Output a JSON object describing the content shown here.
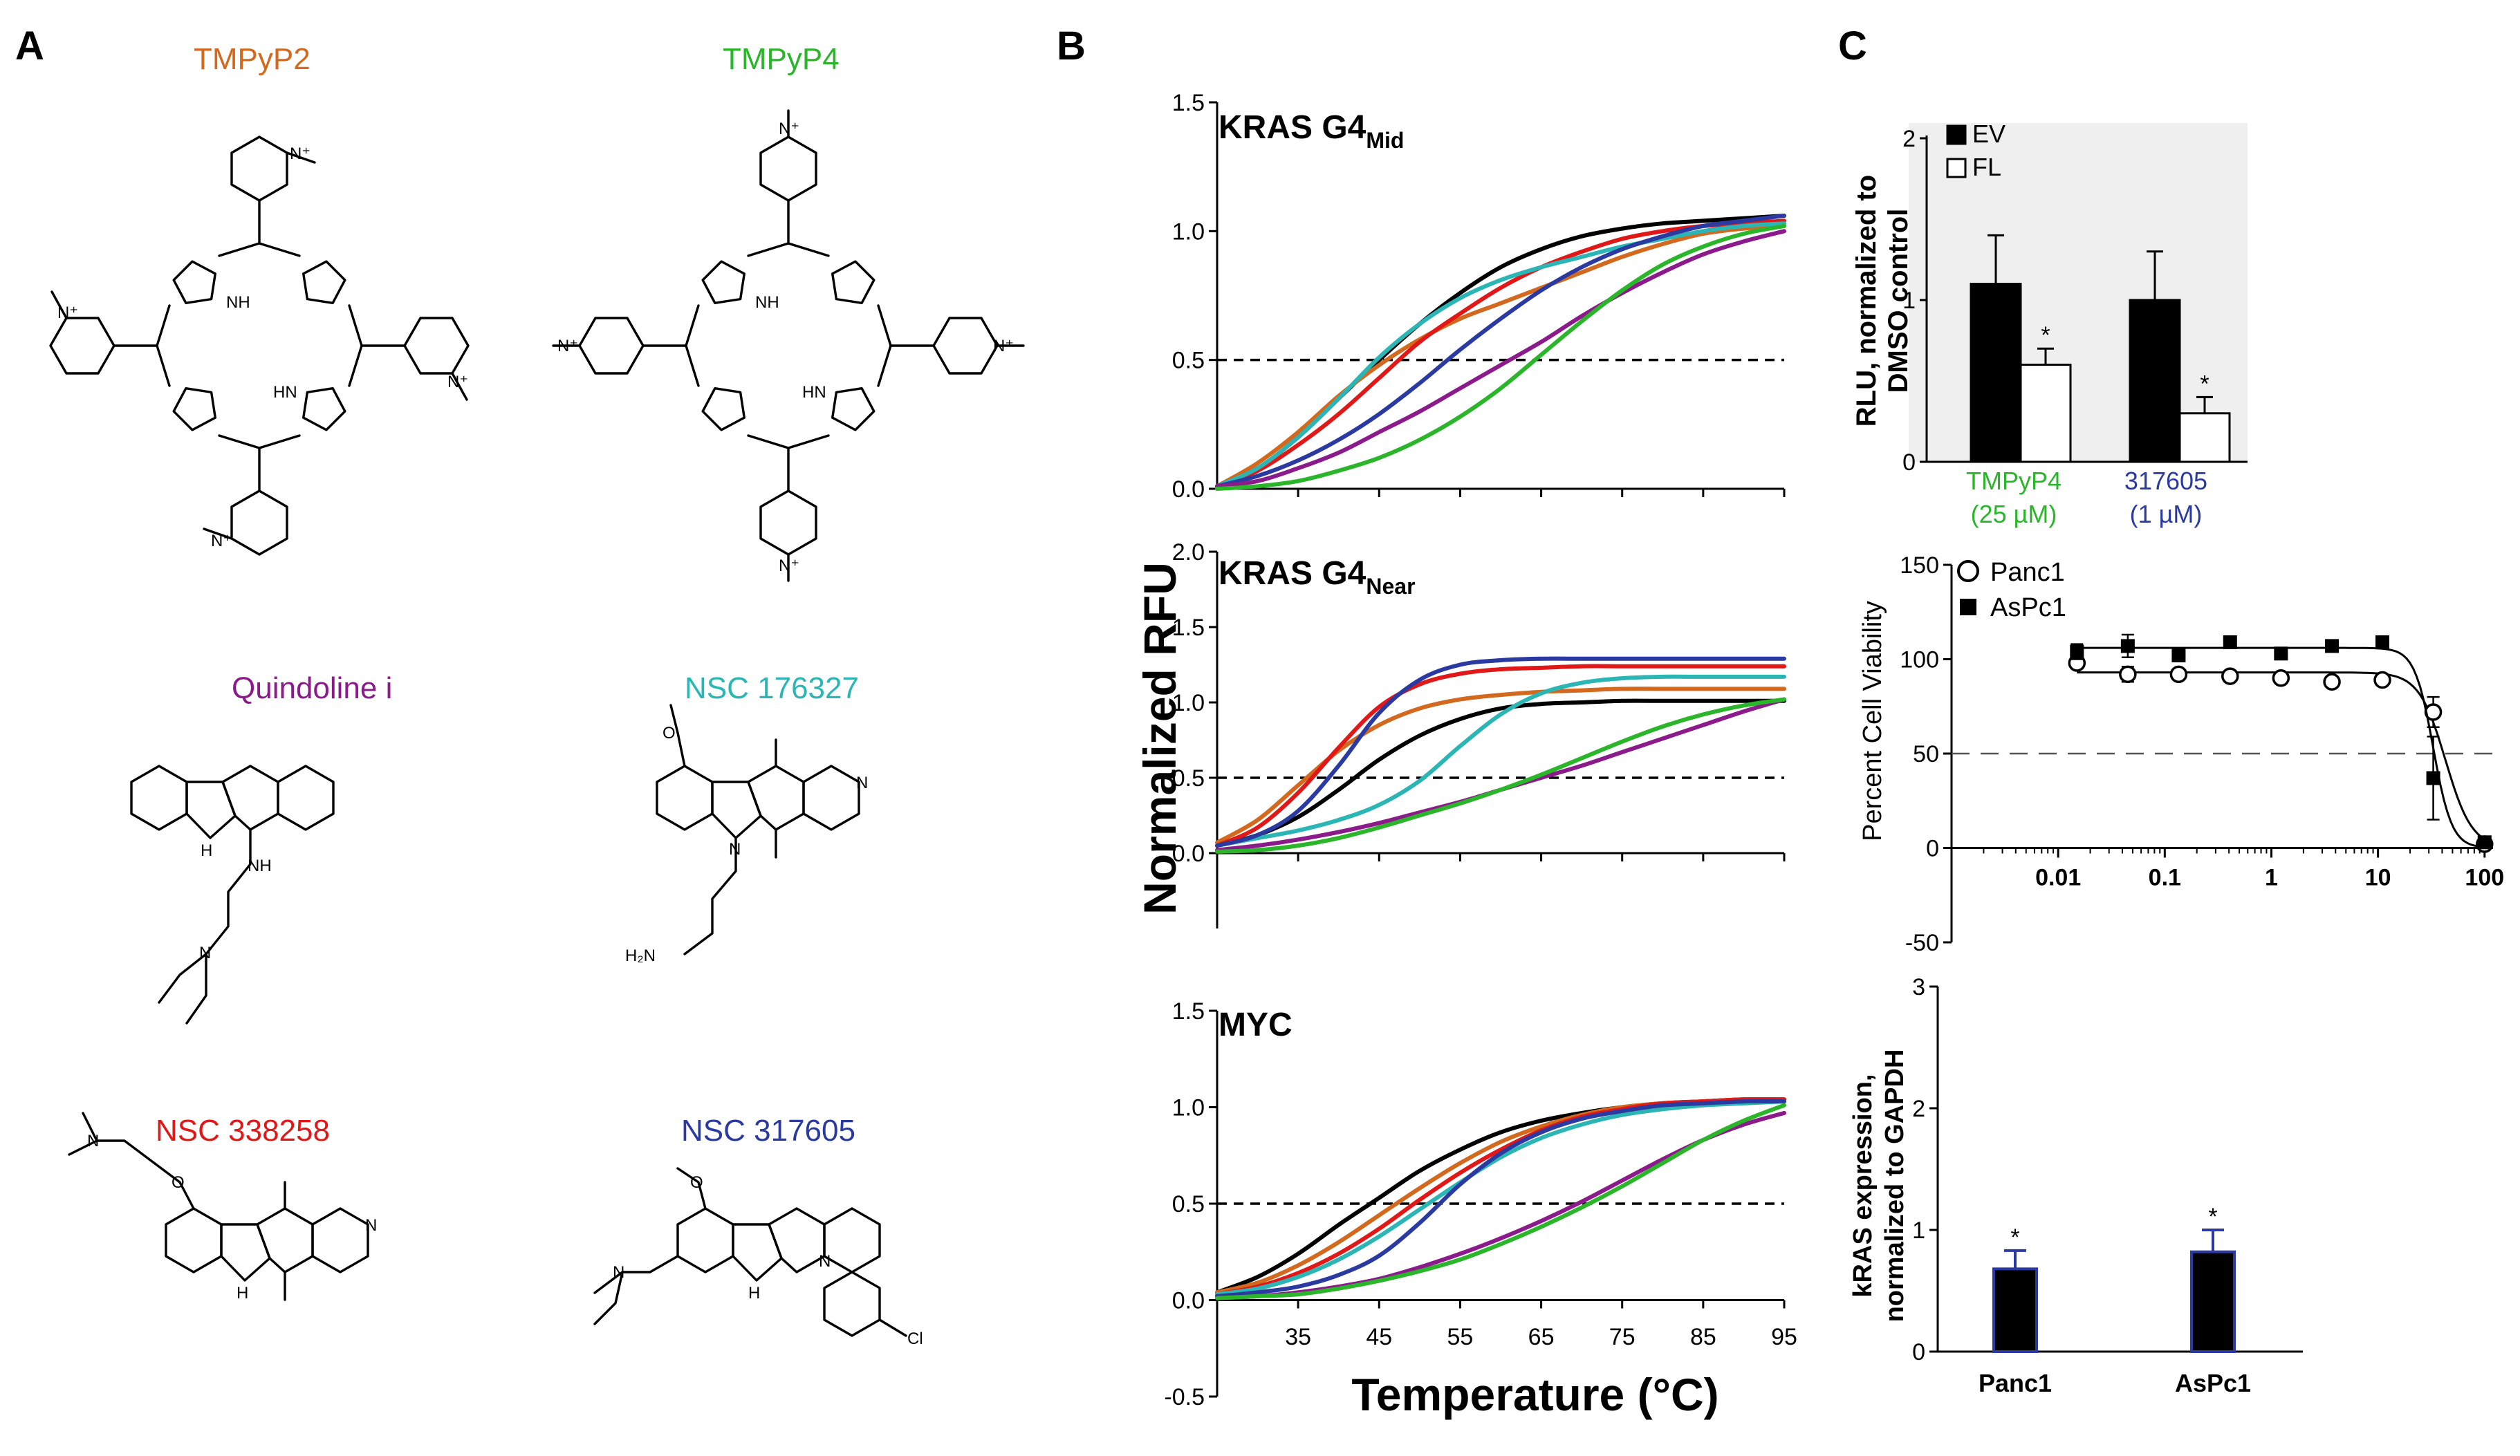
{
  "panel_labels": {
    "a": "A",
    "b": "B",
    "c": "C"
  },
  "panel_a": {
    "compounds": [
      {
        "name": "TMPyP2",
        "color": "#d2691e"
      },
      {
        "name": "TMPyP4",
        "color": "#2ab52a"
      },
      {
        "name": "Quindoline i",
        "color": "#8b1a8b"
      },
      {
        "name": "NSC 176327",
        "color": "#2bb5b5"
      },
      {
        "name": "NSC 338258",
        "color": "#e01818"
      },
      {
        "name": "NSC 317605",
        "color": "#2b3aa0"
      }
    ],
    "atoms": {
      "n": "N",
      "n_plus": "N⁺",
      "nh": "NH",
      "hn": "HN",
      "h": "H",
      "o": "O",
      "cl": "Cl",
      "h2n": "H₂N"
    }
  },
  "panel_b": {
    "ylabel": "Normalized RFU",
    "xlabel": "Temperature (°C)",
    "series_colors": [
      "#000000",
      "#d2691e",
      "#e01818",
      "#2bb5b5",
      "#2b3aa0",
      "#8b1a8b",
      "#2ab52a"
    ],
    "dashed_level": 0.5,
    "x_ticks": [
      "35",
      "45",
      "55",
      "65",
      "75",
      "85",
      "95"
    ],
    "subplots": [
      {
        "title_main": "KRAS G4",
        "title_sub": "Mid",
        "y_ticks": [
          "0.0",
          "0.5",
          "1.0",
          "1.5"
        ],
        "ylim": [
          0,
          1.5
        ]
      },
      {
        "title_main": "KRAS G4",
        "title_sub": "Near",
        "y_ticks": [
          "0.0",
          "0.5",
          "1.0",
          "1.5",
          "2.0"
        ],
        "ylim": [
          -0.5,
          2.0
        ]
      },
      {
        "title_main": "MYC",
        "title_sub": "",
        "y_ticks": [
          "-0.5",
          "0.0",
          "0.5",
          "1.0",
          "1.5"
        ],
        "ylim": [
          -0.5,
          1.5
        ]
      }
    ]
  },
  "panel_c": {
    "top": {
      "ylabel_line1": "RLU, normalized to",
      "ylabel_line2": "DMSO control",
      "y_ticks": [
        "0",
        "1",
        "2"
      ],
      "legend": [
        {
          "label": "EV",
          "fill": "#000000"
        },
        {
          "label": "FL",
          "fill": "#ffffff"
        }
      ],
      "groups": [
        {
          "line1": "TMPyP4",
          "line2": "(25 µM)",
          "color": "#2ab52a"
        },
        {
          "line1": "317605",
          "line2": "(1 µM)",
          "color": "#2b3aa0"
        }
      ],
      "star": "*"
    },
    "middle": {
      "ylabel": "Percent Cell Viability",
      "y_ticks": [
        "-50",
        "0",
        "50",
        "100",
        "150"
      ],
      "x_ticks": [
        "0.01",
        "0.1",
        "1",
        "10",
        "100"
      ],
      "legend": [
        {
          "label": "Panc1",
          "marker": "open-circle"
        },
        {
          "label": "AsPc1",
          "marker": "filled-square"
        }
      ]
    },
    "bottom": {
      "ylabel_line1": "kRAS expression,",
      "ylabel_line2": "normalized to GAPDH",
      "y_ticks": [
        "0",
        "1",
        "2",
        "3"
      ],
      "categories": [
        "Panc1",
        "AsPc1"
      ],
      "star": "*"
    }
  },
  "chart_data": [
    {
      "type": "line",
      "title": "KRAS G4Mid",
      "xlabel": "Temperature (°C)",
      "ylabel": "Normalized RFU",
      "ylim": [
        0,
        1.5
      ],
      "x": [
        25,
        30,
        35,
        40,
        45,
        50,
        55,
        60,
        65,
        70,
        75,
        80,
        85,
        90,
        95
      ],
      "series": [
        {
          "color": "#000000",
          "values": [
            0.01,
            0.08,
            0.2,
            0.35,
            0.5,
            0.64,
            0.76,
            0.86,
            0.93,
            0.98,
            1.01,
            1.03,
            1.04,
            1.05,
            1.06
          ]
        },
        {
          "color": "#d2691e",
          "values": [
            0.01,
            0.1,
            0.22,
            0.36,
            0.48,
            0.58,
            0.66,
            0.72,
            0.78,
            0.84,
            0.9,
            0.95,
            0.99,
            1.01,
            1.02
          ]
        },
        {
          "color": "#e01818",
          "values": [
            0.01,
            0.07,
            0.17,
            0.29,
            0.43,
            0.57,
            0.68,
            0.78,
            0.86,
            0.92,
            0.97,
            1.0,
            1.02,
            1.03,
            1.04
          ]
        },
        {
          "color": "#2bb5b5",
          "values": [
            0.01,
            0.08,
            0.2,
            0.35,
            0.51,
            0.64,
            0.74,
            0.81,
            0.86,
            0.9,
            0.94,
            0.97,
            1.0,
            1.02,
            1.03
          ]
        },
        {
          "color": "#2b3aa0",
          "values": [
            0.01,
            0.05,
            0.11,
            0.19,
            0.29,
            0.41,
            0.54,
            0.66,
            0.77,
            0.86,
            0.93,
            0.98,
            1.02,
            1.04,
            1.06
          ]
        },
        {
          "color": "#8b1a8b",
          "values": [
            0.01,
            0.03,
            0.08,
            0.14,
            0.22,
            0.3,
            0.39,
            0.48,
            0.57,
            0.67,
            0.76,
            0.84,
            0.91,
            0.96,
            1.0
          ]
        },
        {
          "color": "#2ab52a",
          "values": [
            0.0,
            0.01,
            0.03,
            0.07,
            0.12,
            0.19,
            0.28,
            0.39,
            0.52,
            0.65,
            0.77,
            0.87,
            0.94,
            0.99,
            1.02
          ]
        }
      ]
    },
    {
      "type": "line",
      "title": "KRAS G4Near",
      "xlabel": "Temperature (°C)",
      "ylabel": "Normalized RFU",
      "ylim": [
        -0.5,
        2.0
      ],
      "x": [
        25,
        30,
        35,
        40,
        45,
        50,
        55,
        60,
        65,
        70,
        75,
        80,
        85,
        90,
        95
      ],
      "series": [
        {
          "color": "#000000",
          "values": [
            0.05,
            0.12,
            0.24,
            0.42,
            0.62,
            0.78,
            0.89,
            0.96,
            0.99,
            1.0,
            1.01,
            1.01,
            1.01,
            1.01,
            1.01
          ]
        },
        {
          "color": "#d2691e",
          "values": [
            0.07,
            0.22,
            0.45,
            0.68,
            0.85,
            0.96,
            1.02,
            1.05,
            1.07,
            1.08,
            1.09,
            1.09,
            1.09,
            1.09,
            1.09
          ]
        },
        {
          "color": "#e01818",
          "values": [
            0.05,
            0.17,
            0.4,
            0.7,
            0.97,
            1.12,
            1.19,
            1.22,
            1.23,
            1.24,
            1.24,
            1.24,
            1.24,
            1.24,
            1.24
          ]
        },
        {
          "color": "#2bb5b5",
          "values": [
            0.05,
            0.1,
            0.15,
            0.22,
            0.32,
            0.48,
            0.71,
            0.92,
            1.06,
            1.13,
            1.16,
            1.17,
            1.17,
            1.17,
            1.17
          ]
        },
        {
          "color": "#2b3aa0",
          "values": [
            0.05,
            0.12,
            0.28,
            0.58,
            0.93,
            1.15,
            1.25,
            1.28,
            1.29,
            1.29,
            1.29,
            1.29,
            1.29,
            1.29,
            1.29
          ]
        },
        {
          "color": "#8b1a8b",
          "values": [
            0.02,
            0.05,
            0.09,
            0.14,
            0.2,
            0.27,
            0.34,
            0.42,
            0.5,
            0.58,
            0.67,
            0.76,
            0.85,
            0.94,
            1.02
          ]
        },
        {
          "color": "#2ab52a",
          "values": [
            0.01,
            0.02,
            0.05,
            0.1,
            0.17,
            0.25,
            0.33,
            0.42,
            0.52,
            0.63,
            0.74,
            0.84,
            0.92,
            0.98,
            1.02
          ]
        }
      ]
    },
    {
      "type": "line",
      "title": "MYC",
      "xlabel": "Temperature (°C)",
      "ylabel": "Normalized RFU",
      "ylim": [
        -0.5,
        1.5
      ],
      "x": [
        25,
        30,
        35,
        40,
        45,
        50,
        55,
        60,
        65,
        70,
        75,
        80,
        85,
        90,
        95
      ],
      "series": [
        {
          "color": "#000000",
          "values": [
            0.04,
            0.12,
            0.24,
            0.39,
            0.53,
            0.67,
            0.78,
            0.87,
            0.93,
            0.97,
            1.0,
            1.02,
            1.03,
            1.04,
            1.04
          ]
        },
        {
          "color": "#d2691e",
          "values": [
            0.04,
            0.09,
            0.18,
            0.3,
            0.44,
            0.58,
            0.71,
            0.82,
            0.9,
            0.96,
            1.0,
            1.02,
            1.03,
            1.04,
            1.04
          ]
        },
        {
          "color": "#e01818",
          "values": [
            0.03,
            0.07,
            0.14,
            0.24,
            0.37,
            0.52,
            0.66,
            0.78,
            0.88,
            0.95,
            0.99,
            1.02,
            1.03,
            1.04,
            1.04
          ]
        },
        {
          "color": "#2bb5b5",
          "values": [
            0.03,
            0.06,
            0.12,
            0.21,
            0.33,
            0.47,
            0.61,
            0.74,
            0.84,
            0.91,
            0.96,
            0.99,
            1.01,
            1.02,
            1.03
          ]
        },
        {
          "color": "#2b3aa0",
          "values": [
            0.02,
            0.04,
            0.07,
            0.13,
            0.23,
            0.4,
            0.6,
            0.76,
            0.87,
            0.94,
            0.98,
            1.01,
            1.02,
            1.03,
            1.03
          ]
        },
        {
          "color": "#8b1a8b",
          "values": [
            0.01,
            0.02,
            0.04,
            0.07,
            0.11,
            0.17,
            0.24,
            0.32,
            0.41,
            0.51,
            0.62,
            0.73,
            0.83,
            0.91,
            0.97
          ]
        },
        {
          "color": "#2ab52a",
          "values": [
            0.01,
            0.02,
            0.03,
            0.06,
            0.1,
            0.15,
            0.21,
            0.29,
            0.38,
            0.48,
            0.59,
            0.71,
            0.83,
            0.93,
            1.01
          ]
        }
      ]
    },
    {
      "type": "bar",
      "title": "",
      "ylabel": "RLU, normalized to DMSO control",
      "ylim": [
        0,
        2
      ],
      "categories": [
        "TMPyP4 (25 µM)",
        "317605 (1 µM)"
      ],
      "series": [
        {
          "name": "EV",
          "values": [
            1.1,
            1.0
          ],
          "errors": [
            0.3,
            0.3
          ],
          "color": "#000000"
        },
        {
          "name": "FL",
          "values": [
            0.6,
            0.3
          ],
          "errors": [
            0.1,
            0.1
          ],
          "color": "#ffffff"
        }
      ],
      "significance": [
        "*",
        "*"
      ]
    },
    {
      "type": "scatter",
      "title": "",
      "ylabel": "Percent Cell Viability",
      "x_scale": "log",
      "ylim": [
        -50,
        150
      ],
      "xlim": [
        0.001,
        120
      ],
      "series": [
        {
          "name": "Panc1",
          "marker": "open-circle",
          "x": [
            0.015,
            0.045,
            0.135,
            0.41,
            1.23,
            3.7,
            11,
            33,
            100
          ],
          "y": [
            98,
            92,
            92,
            91,
            90,
            88,
            89,
            72,
            2
          ],
          "errors": [
            3,
            4,
            2,
            2,
            2,
            2,
            2,
            8,
            2
          ],
          "fit": {
            "top": 93,
            "bottom": 0,
            "ic50": 43,
            "hill": 3.5
          }
        },
        {
          "name": "AsPc1",
          "marker": "filled-square",
          "x": [
            0.015,
            0.045,
            0.135,
            0.41,
            1.23,
            3.7,
            11,
            33,
            100
          ],
          "y": [
            104,
            107,
            102,
            109,
            103,
            107,
            109,
            37,
            3
          ],
          "errors": [
            4,
            6,
            2,
            3,
            2,
            2,
            2,
            22,
            2
          ],
          "fit": {
            "top": 106,
            "bottom": 0,
            "ic50": 33,
            "hill": 5
          }
        }
      ],
      "reference_line": 50
    },
    {
      "type": "bar",
      "title": "",
      "ylabel": "kRAS expression, normalized to GAPDH",
      "ylim": [
        0,
        3
      ],
      "categories": [
        "Panc1",
        "AsPc1"
      ],
      "values": [
        0.68,
        0.82
      ],
      "errors": [
        0.15,
        0.18
      ],
      "significance": [
        "*",
        "*"
      ]
    }
  ]
}
